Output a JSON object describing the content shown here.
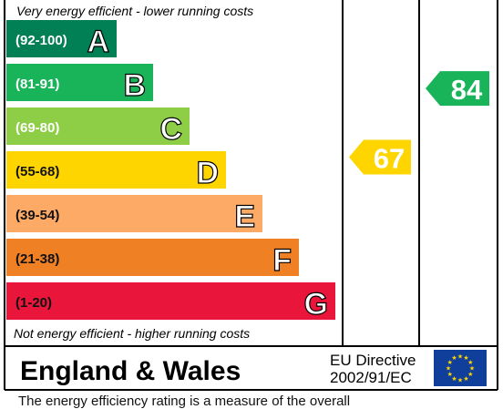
{
  "chart_data": {
    "type": "bar",
    "top_caption": "Very energy efficient - lower running costs",
    "bottom_caption": "Not energy efficient - higher running costs",
    "bands": [
      {
        "range": "(92-100)",
        "letter": "A",
        "color": "#008054"
      },
      {
        "range": "(81-91)",
        "letter": "B",
        "color": "#19b459"
      },
      {
        "range": "(69-80)",
        "letter": "C",
        "color": "#8dce46"
      },
      {
        "range": "(55-68)",
        "letter": "D",
        "color": "#ffd500"
      },
      {
        "range": "(39-54)",
        "letter": "E",
        "color": "#fcaa65"
      },
      {
        "range": "(21-38)",
        "letter": "F",
        "color": "#ef8023"
      },
      {
        "range": "(1-20)",
        "letter": "G",
        "color": "#e9153b"
      }
    ],
    "ratings": [
      {
        "column": "current",
        "value": 67,
        "color": "#ffd500"
      },
      {
        "column": "potential",
        "value": 84,
        "color": "#19b459"
      }
    ],
    "region": "England & Wales",
    "directive_line1": "EU Directive",
    "directive_line2": "2002/91/EC",
    "flag_color": "#0f3e9b",
    "star_color": "#ffd500"
  },
  "footer_text": "The energy efficiency rating is a measure of the overall"
}
